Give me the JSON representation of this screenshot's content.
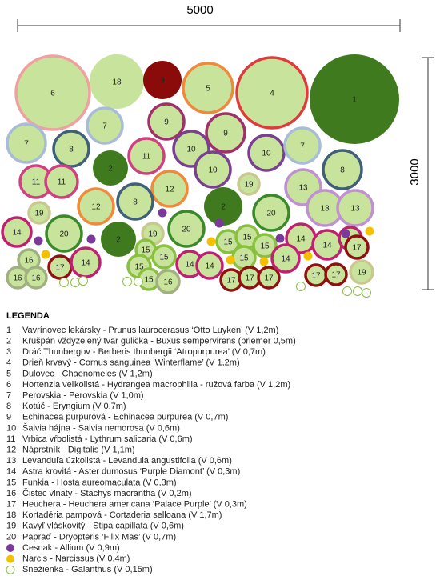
{
  "dimensions": {
    "width": "5000",
    "height": "3000"
  },
  "plan": {
    "labels": [
      "6",
      "18",
      "3",
      "5",
      "4",
      "1",
      "7",
      "9",
      "9",
      "7",
      "8",
      "11",
      "10",
      "10",
      "7",
      "8",
      "2",
      "10",
      "11",
      "11",
      "12",
      "19",
      "13",
      "8",
      "12",
      "2",
      "20",
      "13",
      "13",
      "19",
      "20",
      "14",
      "2",
      "19",
      "20",
      "15",
      "15",
      "15",
      "15",
      "14",
      "14",
      "14",
      "16",
      "16",
      "16",
      "17",
      "14",
      "15",
      "15",
      "15",
      "14",
      "14",
      "17",
      "17",
      "17",
      "14",
      "17",
      "17",
      "17",
      "19",
      "15",
      "16"
    ]
  },
  "legend": {
    "title": "LEGENDA",
    "items": [
      {
        "number": "1",
        "text": "Vavrínovec lekársky - Prunus laurocerasus ‘Otto Luyken’ (V 1,2m)"
      },
      {
        "number": "2",
        "text": "Krušpán vždyzelený tvar gulička - Buxus sempervirens (priemer 0,5m)"
      },
      {
        "number": "3",
        "text": "Dráč Thunbergov - Berberis thunbergii ‘Atropurpurea’ (V 0,7m)"
      },
      {
        "number": "4",
        "text": "Drieň krvavý - Cornus sanguinea ‘Winterflame’ (V 1,2m)"
      },
      {
        "number": "5",
        "text": "Dulovec - Chaenomeles (V 1,2m)"
      },
      {
        "number": "6",
        "text": "Hortenzia veľkolistá - Hydrangea macrophilla - ružová farba (V 1,2m)"
      },
      {
        "number": "7",
        "text": "Perovskia - Perovskia (V 1,0m)"
      },
      {
        "number": "8",
        "text": "Kotúč - Eryngium (V 0,7m)"
      },
      {
        "number": "9",
        "text": "Echinacea purpurová - Echinacea purpurea (V 0,7m)"
      },
      {
        "number": "10",
        "text": "Šalvia hájna - Salvia nemorosa (V 0,6m)"
      },
      {
        "number": "11",
        "text": "Vrbica vŕbolistá - Lythrum salicaria (V 0,6m)"
      },
      {
        "number": "12",
        "text": "Náprstník - Digitalis (V 1,1m)"
      },
      {
        "number": "13",
        "text": "Levanduľa úzkolistá - Levandula angustifolia (V 0,6m)"
      },
      {
        "number": "14",
        "text": "Astra krovitá - Aster dumosus ‘Purple Diamont’ (V 0,3m)"
      },
      {
        "number": "15",
        "text": "Funkia - Hosta aureomaculata (V 0,3m)"
      },
      {
        "number": "16",
        "text": "Čistec vlnatý - Stachys macrantha (V 0,2m)"
      },
      {
        "number": "17",
        "text": "Heuchera - Heuchera americana ‘Palace Purple’ (V 0,3m)"
      },
      {
        "number": "18",
        "text": "Kortadéria pampová - Cortaderia selloana (V 1,7m)"
      },
      {
        "number": "19",
        "text": "Kavyľ vláskovitý - Stipa capillata (V 0,6m)"
      },
      {
        "number": "20",
        "text": "Papraď - Dryopteris ‘Filix Mas’ (V 0,7m)"
      },
      {
        "text": "Cesnak - Allium (V 0,9m)"
      },
      {
        "text": "Narcis - Narcissus (V 0,4m)"
      },
      {
        "text": "Snežienka - Galanthus (V 0,15m)"
      }
    ]
  }
}
